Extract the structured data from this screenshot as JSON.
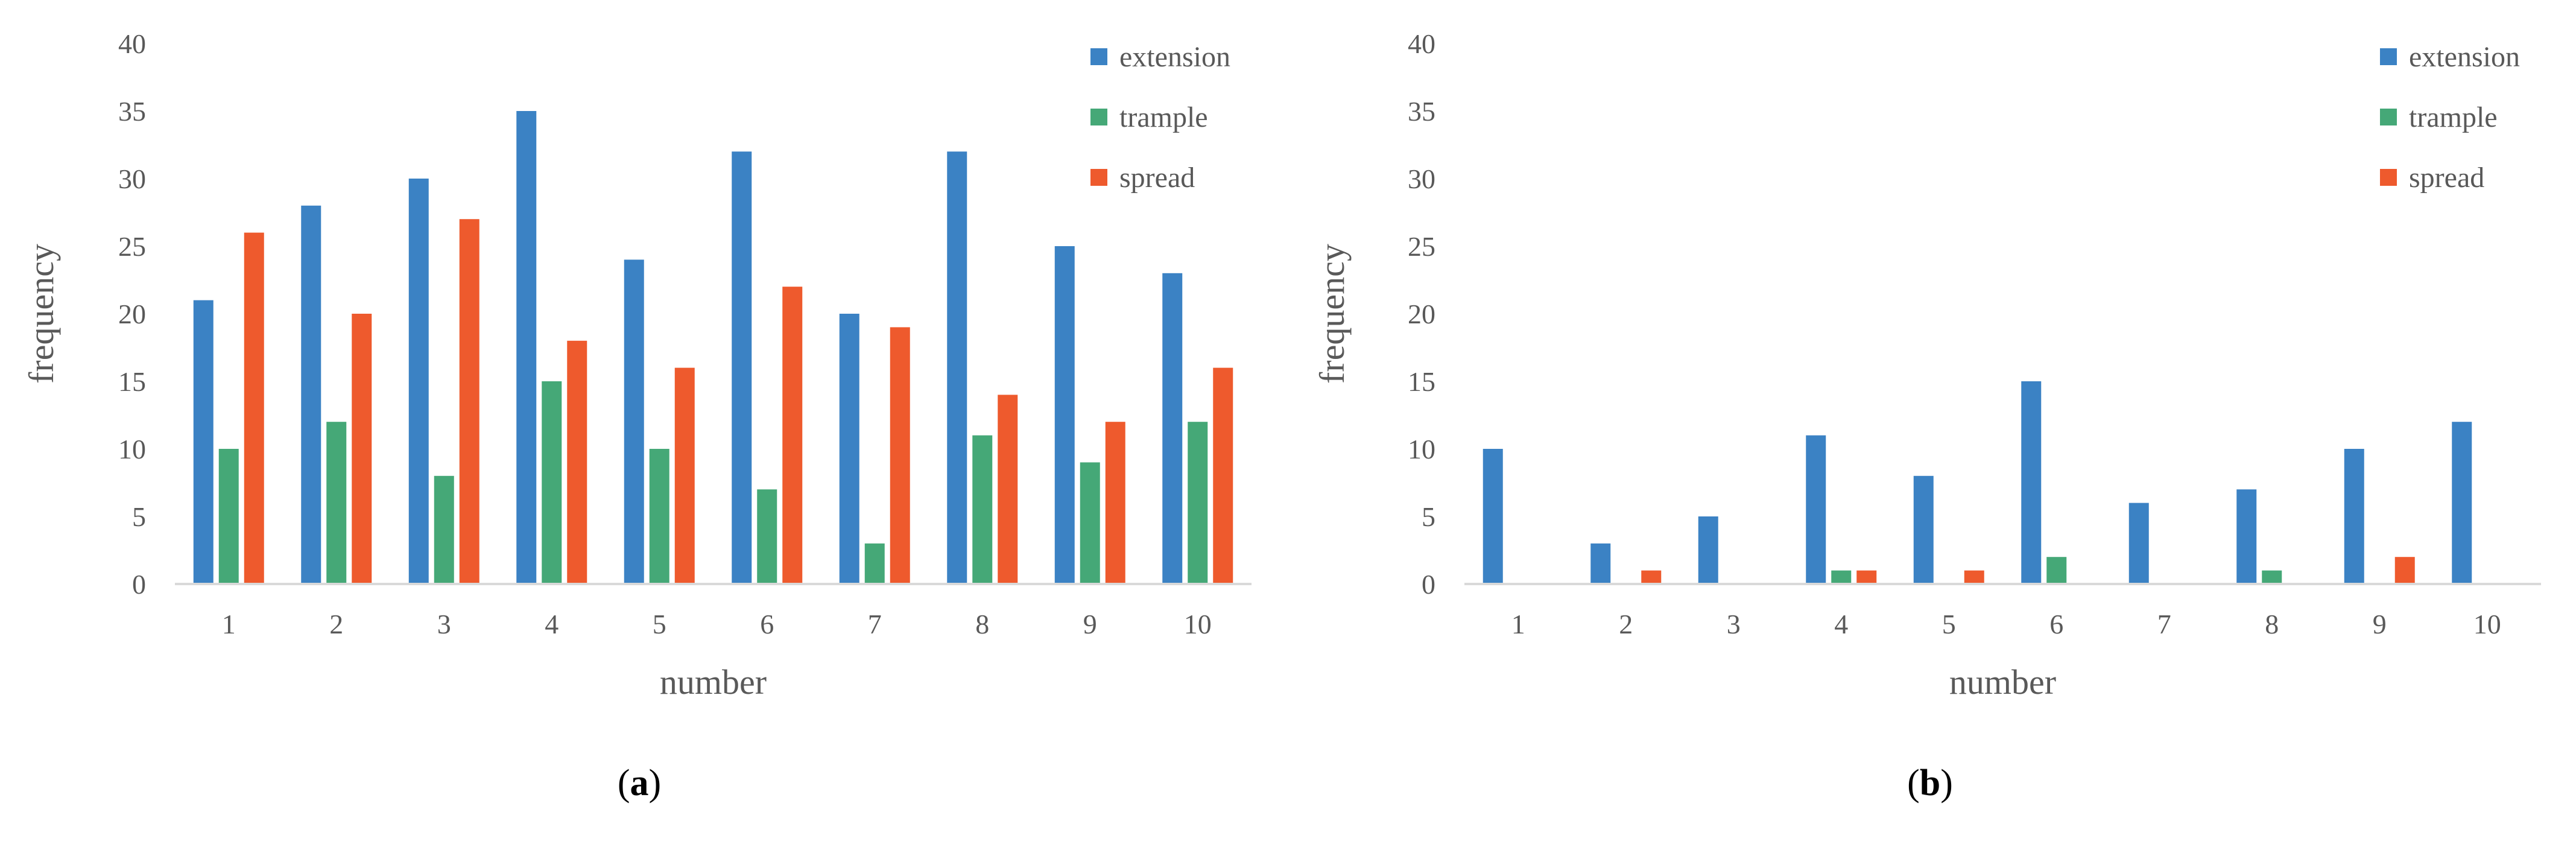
{
  "colors": {
    "extension": "#3B82C4",
    "trample": "#45A877",
    "spread": "#EE5A2D",
    "axis_text": "#595959",
    "axis_line": "#D9D9D9",
    "caption_text": "#000000"
  },
  "chart_data": [
    {
      "type": "bar",
      "panel_label": "a",
      "title": "",
      "xlabel": "number",
      "ylabel": "frequency",
      "ylim": [
        0,
        40
      ],
      "yticks": [
        0,
        5,
        10,
        15,
        20,
        25,
        30,
        35,
        40
      ],
      "grid": false,
      "legend_position": "top-right",
      "categories": [
        "1",
        "2",
        "3",
        "4",
        "5",
        "6",
        "7",
        "8",
        "9",
        "10"
      ],
      "series": [
        {
          "name": "extension",
          "values": [
            21,
            28,
            30,
            35,
            24,
            32,
            20,
            32,
            25,
            23
          ]
        },
        {
          "name": "trample",
          "values": [
            10,
            12,
            8,
            15,
            10,
            7,
            3,
            11,
            9,
            12
          ]
        },
        {
          "name": "spread",
          "values": [
            26,
            20,
            27,
            18,
            16,
            22,
            19,
            14,
            12,
            16
          ]
        }
      ]
    },
    {
      "type": "bar",
      "panel_label": "b",
      "title": "",
      "xlabel": "number",
      "ylabel": "frequency",
      "ylim": [
        0,
        40
      ],
      "yticks": [
        0,
        5,
        10,
        15,
        20,
        25,
        30,
        35,
        40
      ],
      "grid": false,
      "legend_position": "top-right",
      "categories": [
        "1",
        "2",
        "3",
        "4",
        "5",
        "6",
        "7",
        "8",
        "9",
        "10"
      ],
      "series": [
        {
          "name": "extension",
          "values": [
            10,
            3,
            5,
            11,
            8,
            15,
            6,
            7,
            10,
            12
          ]
        },
        {
          "name": "trample",
          "values": [
            0,
            0,
            0,
            1,
            0,
            2,
            0,
            1,
            0,
            0
          ]
        },
        {
          "name": "spread",
          "values": [
            0,
            1,
            0,
            1,
            1,
            0,
            0,
            0,
            2,
            0
          ]
        }
      ]
    }
  ]
}
